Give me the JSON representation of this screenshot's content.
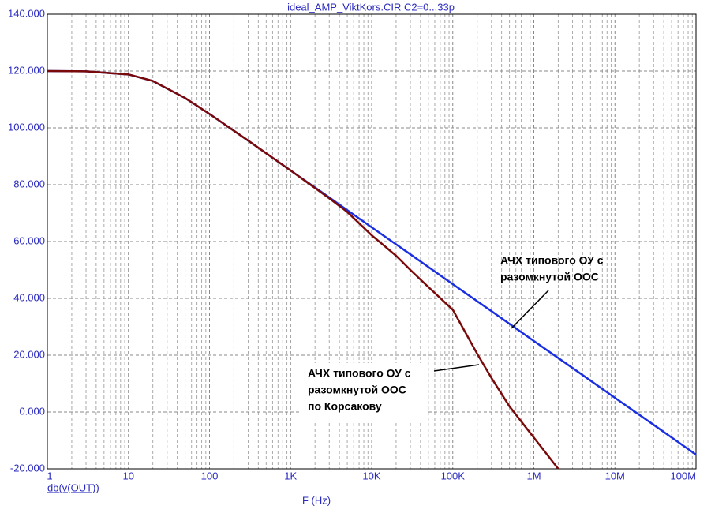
{
  "chart_data": {
    "type": "line",
    "title": "ideal_AMP_ViktKors.CIR C2=0...33p",
    "y_label": "db(v(OUT))",
    "x_label": "F (Hz)",
    "log_x": true,
    "grid": true,
    "xlim": [
      1,
      100000000
    ],
    "ylim": [
      -20,
      140
    ],
    "xticks": [
      1,
      10,
      100,
      {
        "value": 1000,
        "label": "1K"
      },
      {
        "value": 10000,
        "label": "10K"
      },
      {
        "value": 100000,
        "label": "100K"
      },
      {
        "value": 1000000,
        "label": "1M"
      },
      {
        "value": 10000000,
        "label": "10M"
      },
      {
        "value": 100000000,
        "label": "100M"
      }
    ],
    "yticks": [
      {
        "value": -20,
        "label": "-20.000"
      },
      {
        "value": 0,
        "label": "0.000"
      },
      {
        "value": 20,
        "label": "20.000"
      },
      {
        "value": 40,
        "label": "40.000"
      },
      {
        "value": 60,
        "label": "60.000"
      },
      {
        "value": 80,
        "label": "80.000"
      },
      {
        "value": 100,
        "label": "100.000"
      },
      {
        "value": 120,
        "label": "120.000"
      },
      {
        "value": 140,
        "label": "140.000"
      }
    ],
    "series": [
      {
        "color": "#1a2fe0",
        "x": [
          1,
          3,
          10,
          20,
          50,
          100,
          300,
          1000,
          3000,
          10000,
          30000,
          100000,
          300000,
          1000000,
          3000000,
          10000000,
          30000000,
          100000000
        ],
        "values": [
          120.0,
          119.9,
          118.8,
          116.5,
          110.5,
          104.9,
          95.5,
          85.0,
          75.5,
          65.0,
          55.5,
          45.0,
          35.5,
          25.0,
          15.5,
          5.0,
          -4.5,
          -15.0
        ]
      },
      {
        "color": "#7a0a0a",
        "x": [
          1,
          3,
          10,
          20,
          50,
          100,
          300,
          1000,
          3000,
          5000,
          10000,
          20000,
          30000,
          50000,
          100000,
          200000,
          300000,
          500000,
          1000000,
          2000000
        ],
        "values": [
          120.0,
          119.9,
          118.8,
          116.5,
          110.5,
          104.9,
          95.5,
          85.0,
          75.2,
          70.4,
          62.2,
          55.0,
          50.0,
          44.0,
          36.0,
          20.5,
          12.0,
          2.0,
          -9.0,
          -20.0
        ]
      }
    ],
    "annotations": [
      {
        "lines": [
          "АЧХ типового ОУ с",
          "разомкнутой ООС"
        ]
      },
      {
        "lines": [
          "АЧХ типового ОУ с",
          "разомкнутой ООС",
          "по Корсакову"
        ]
      }
    ]
  }
}
